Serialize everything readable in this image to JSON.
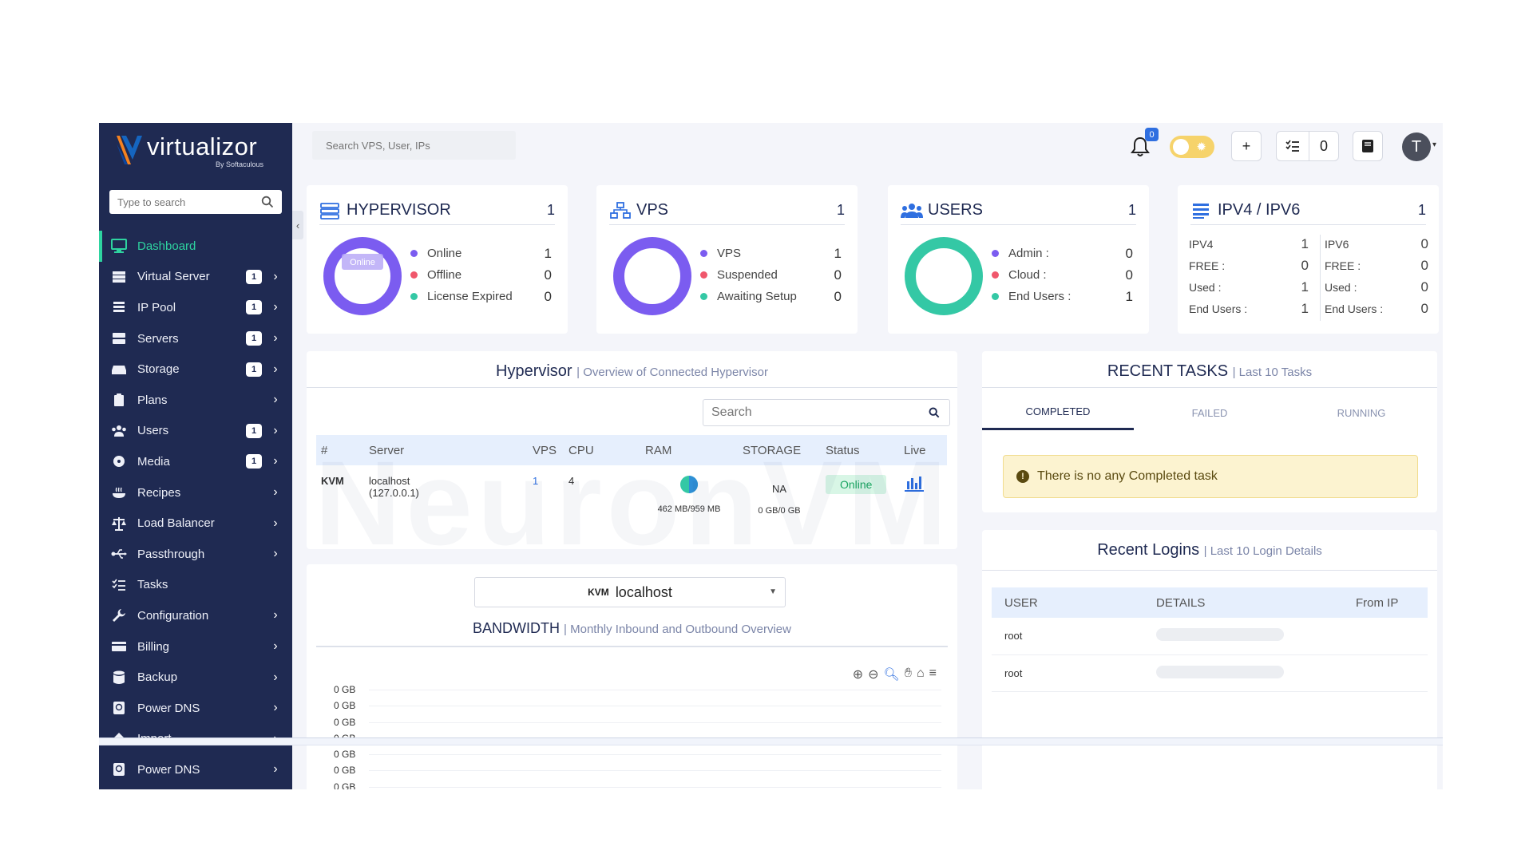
{
  "brand": {
    "name": "virtualizor",
    "byline": "By Softaculous"
  },
  "sidebar": {
    "search_placeholder": "Type to search",
    "items": [
      {
        "label": "Dashboard",
        "icon": "monitor-icon",
        "badge": "",
        "active": true
      },
      {
        "label": "Virtual Server",
        "icon": "server-icon",
        "badge": "1"
      },
      {
        "label": "IP Pool",
        "icon": "list-icon",
        "badge": "1"
      },
      {
        "label": "Servers",
        "icon": "servers-icon",
        "badge": "1"
      },
      {
        "label": "Storage",
        "icon": "storage-icon",
        "badge": "1"
      },
      {
        "label": "Plans",
        "icon": "clipboard-icon",
        "badge": ""
      },
      {
        "label": "Users",
        "icon": "users-icon",
        "badge": "1"
      },
      {
        "label": "Media",
        "icon": "disc-icon",
        "badge": "1"
      },
      {
        "label": "Recipes",
        "icon": "recipe-icon",
        "badge": ""
      },
      {
        "label": "Load Balancer",
        "icon": "balance-icon",
        "badge": ""
      },
      {
        "label": "Passthrough",
        "icon": "usb-icon",
        "badge": ""
      },
      {
        "label": "Tasks",
        "icon": "tasks-icon",
        "badge": ""
      },
      {
        "label": "Configuration",
        "icon": "wrench-icon",
        "badge": ""
      },
      {
        "label": "Billing",
        "icon": "card-icon",
        "badge": ""
      },
      {
        "label": "Backup",
        "icon": "database-icon",
        "badge": ""
      },
      {
        "label": "Power DNS",
        "icon": "dns-icon",
        "badge": ""
      },
      {
        "label": "Import",
        "icon": "import-icon",
        "badge": ""
      },
      {
        "label": "Power DNS",
        "icon": "dns-icon",
        "badge": ""
      }
    ]
  },
  "topbar": {
    "search_placeholder": "Search VPS, User, IPs",
    "notifications": "0",
    "task_count": "0",
    "avatar_initial": "T"
  },
  "stats": {
    "hypervisor": {
      "title": "HYPERVISOR",
      "count": "1",
      "donut_label": "Online",
      "rows": [
        {
          "label": "Online",
          "value": "1",
          "color": "#7b5cf0"
        },
        {
          "label": "Offline",
          "value": "0",
          "color": "#f0576c"
        },
        {
          "label": "License Expired",
          "value": "0",
          "color": "#34c8a5"
        }
      ]
    },
    "vps": {
      "title": "VPS",
      "count": "1",
      "rows": [
        {
          "label": "VPS",
          "value": "1",
          "color": "#7b5cf0"
        },
        {
          "label": "Suspended",
          "value": "0",
          "color": "#f0576c"
        },
        {
          "label": "Awaiting Setup",
          "value": "0",
          "color": "#34c8a5"
        }
      ]
    },
    "users": {
      "title": "USERS",
      "count": "1",
      "rows": [
        {
          "label": "Admin :",
          "value": "0",
          "color": "#7b5cf0"
        },
        {
          "label": "Cloud :",
          "value": "0",
          "color": "#f0576c"
        },
        {
          "label": "End Users :",
          "value": "1",
          "color": "#34c8a5"
        }
      ]
    },
    "ip": {
      "title": "IPV4 / IPV6",
      "count": "1",
      "ipv4": [
        {
          "k": "IPV4",
          "v": "1"
        },
        {
          "k": "FREE :",
          "v": "0"
        },
        {
          "k": "Used :",
          "v": "1"
        },
        {
          "k": "End Users :",
          "v": "1"
        }
      ],
      "ipv6": [
        {
          "k": "IPV6",
          "v": "0"
        },
        {
          "k": "FREE :",
          "v": "0"
        },
        {
          "k": "Used :",
          "v": "0"
        },
        {
          "k": "End Users :",
          "v": "0"
        }
      ]
    }
  },
  "hypervisor_panel": {
    "title": "Hypervisor",
    "subtitle": "| Overview of Connected Hypervisor",
    "search_placeholder": "Search",
    "columns": [
      "#",
      "Server",
      "VPS",
      "CPU",
      "RAM",
      "STORAGE",
      "Status",
      "Live"
    ],
    "row": {
      "type": "KVM",
      "server": "localhost",
      "server_ip": "(127.0.0.1)",
      "vps": "1",
      "cpu": "4",
      "ram": "462 MB/959 MB",
      "storage": "NA",
      "storage_usage": "0 GB/0 GB",
      "status": "Online"
    }
  },
  "tasks_panel": {
    "title": "RECENT TASKS",
    "subtitle": "| Last 10 Tasks",
    "tabs": [
      "COMPLETED",
      "FAILED",
      "RUNNING"
    ],
    "alert": "There is no any Completed task"
  },
  "bandwidth_panel": {
    "select_type": "KVM",
    "select_value": "localhost",
    "title": "BANDWIDTH",
    "subtitle": "| Monthly Inbound and Outbound Overview",
    "y_ticks": [
      "0 GB",
      "0 GB",
      "0 GB",
      "0 GB",
      "0 GB",
      "0 GB",
      "0 GB"
    ]
  },
  "logins_panel": {
    "title": "Recent Logins",
    "subtitle": "| Last 10 Login Details",
    "columns": [
      "USER",
      "DETAILS",
      "From IP"
    ],
    "rows": [
      {
        "user": "root"
      },
      {
        "user": "root"
      }
    ]
  },
  "watermark": "NeuronVM"
}
